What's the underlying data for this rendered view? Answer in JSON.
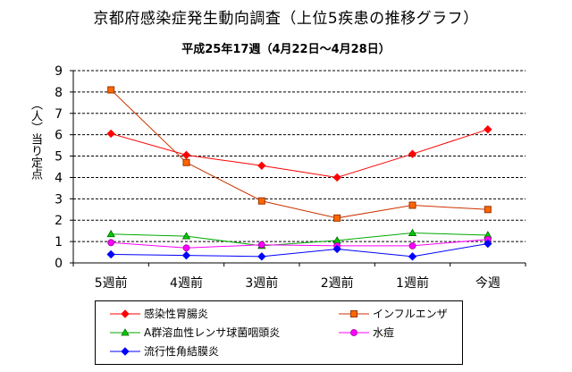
{
  "title": "京都府感染症発生動向調査（上位5疾患の推移グラフ）",
  "subtitle": "平成25年17週（4月22日～4月28日）",
  "ylabel": "（人）当り定点",
  "chart_data": {
    "type": "line",
    "categories": [
      "5週前",
      "4週前",
      "3週前",
      "2週前",
      "1週前",
      "今週"
    ],
    "ylim": [
      0,
      9
    ],
    "yticks": [
      0,
      1,
      2,
      3,
      4,
      5,
      6,
      7,
      8,
      9
    ],
    "grid": "horizontal-dashed",
    "legend_position": "bottom",
    "series": [
      {
        "name": "感染性胃腸炎",
        "values": [
          6.05,
          5.05,
          4.55,
          4.0,
          5.1,
          6.25
        ],
        "color": "#ff0000",
        "marker": "diamond",
        "line_color": "#ff0000"
      },
      {
        "name": "インフルエンザ",
        "values": [
          8.1,
          4.7,
          2.9,
          2.1,
          2.7,
          2.5
        ],
        "color": "#ff6600",
        "marker": "square",
        "line_color": "#cc3300"
      },
      {
        "name": "A群溶血性レンサ球菌咽頭炎",
        "values": [
          1.35,
          1.25,
          0.8,
          1.05,
          1.4,
          1.3
        ],
        "color": "#00cc00",
        "marker": "triangle",
        "line_color": "#00aa00"
      },
      {
        "name": "水痘",
        "values": [
          0.95,
          0.7,
          0.85,
          0.8,
          0.8,
          1.1
        ],
        "color": "#ff00ff",
        "marker": "circle",
        "line_color": "#ff00ff"
      },
      {
        "name": "流行性角結膜炎",
        "values": [
          0.4,
          0.35,
          0.3,
          0.65,
          0.3,
          0.9
        ],
        "color": "#0000ff",
        "marker": "diamond",
        "line_color": "#0000ff"
      }
    ]
  }
}
